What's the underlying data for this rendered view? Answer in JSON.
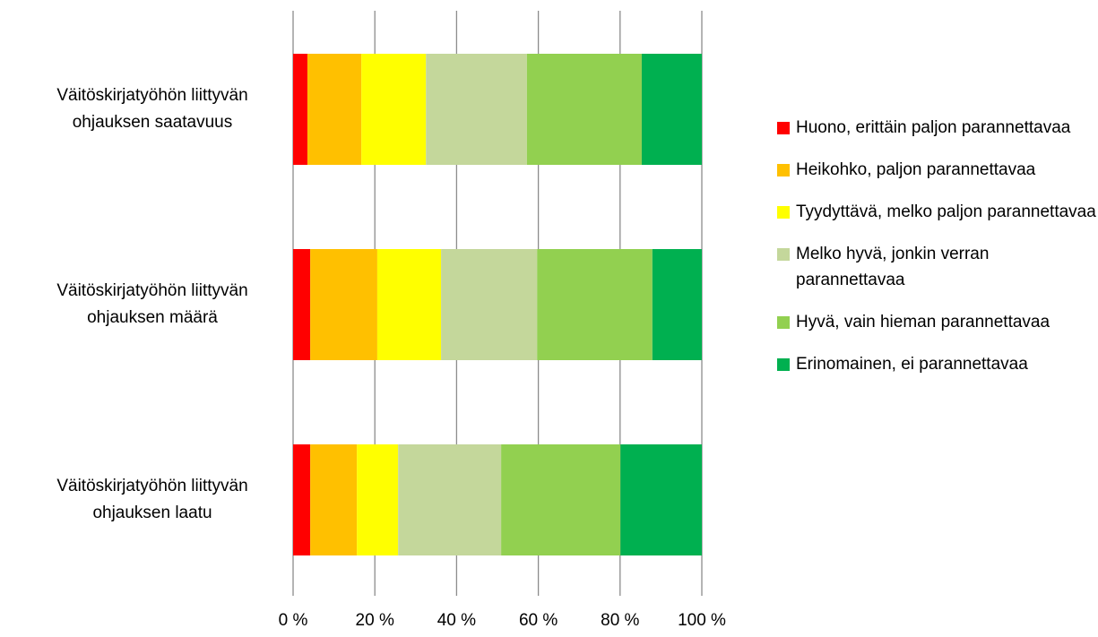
{
  "chart_data": {
    "type": "stacked-bar-horizontal",
    "categories": [
      "Väitöskirjatyöhön  liittyvän ohjauksen saatavuus",
      "Väitöskirjatyöhön liittyvän ohjauksen määrä",
      "Väitöskirjatyöhön liittyvän ohjauksen laatu"
    ],
    "series": [
      {
        "name": "Huono, erittäin paljon parannettavaa",
        "color": "#ff0000",
        "values": [
          3.5,
          4.2,
          4.2
        ]
      },
      {
        "name": "Heikohko, paljon parannettavaa",
        "color": "#ffc000",
        "values": [
          13.2,
          16.4,
          11.4
        ]
      },
      {
        "name": "Tyydyttävä, melko paljon parannettavaa",
        "color": "#ffff00",
        "values": [
          15.8,
          15.6,
          10.1
        ]
      },
      {
        "name": "Melko hyvä, jonkin verran parannettavaa",
        "color": "#c4d79b",
        "values": [
          24.7,
          23.5,
          25.2
        ]
      },
      {
        "name": "Hyvä, vain hieman parannettavaa",
        "color": "#92d050",
        "values": [
          28.1,
          28.2,
          29.2
        ]
      },
      {
        "name": "Erinomainen, ei parannettavaa",
        "color": "#00b050",
        "values": [
          14.7,
          12.1,
          19.9
        ]
      }
    ],
    "xlim": [
      0,
      100
    ],
    "xticks": [
      {
        "value": 0,
        "label": "0 %"
      },
      {
        "value": 20,
        "label": "20 %"
      },
      {
        "value": 40,
        "label": "40 %"
      },
      {
        "value": 60,
        "label": "60 %"
      },
      {
        "value": 80,
        "label": "80 %"
      },
      {
        "value": 100,
        "label": "100 %"
      }
    ],
    "grid": true,
    "legend": "right"
  }
}
